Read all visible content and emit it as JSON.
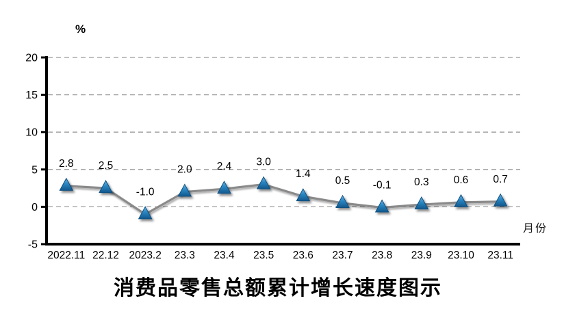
{
  "chart_data": {
    "type": "line",
    "title": "消费品零售总额累计增长速度图示",
    "y_axis_unit_label": "%",
    "x_axis_label": "月份",
    "categories": [
      "2022.11",
      "22.12",
      "2023.2",
      "23.3",
      "23.4",
      "23.5",
      "23.6",
      "23.7",
      "23.8",
      "23.9",
      "23.10",
      "23.11"
    ],
    "values": [
      2.8,
      2.5,
      -1.0,
      2.0,
      2.4,
      3.0,
      1.4,
      0.5,
      -0.1,
      0.3,
      0.6,
      0.7
    ],
    "data_labels": [
      "2.8",
      "2.5",
      "-1.0",
      "2.0",
      "2.4",
      "3.0",
      "1.4",
      "0.5",
      "-0.1",
      "0.3",
      "0.6",
      "0.7"
    ],
    "yticks": [
      20,
      15,
      10,
      5,
      0,
      -5
    ],
    "ylim": [
      -5,
      20
    ],
    "grid": "horizontal-dashed",
    "legend": "none",
    "colors": {
      "line": "#8a8a8a",
      "marker_fill_light": "#54a4d7",
      "marker_fill_dark": "#15629c",
      "marker_stroke": "#0f4f80",
      "gridline": "#9a9a9a",
      "axis": "#000000",
      "text": "#000000"
    }
  }
}
